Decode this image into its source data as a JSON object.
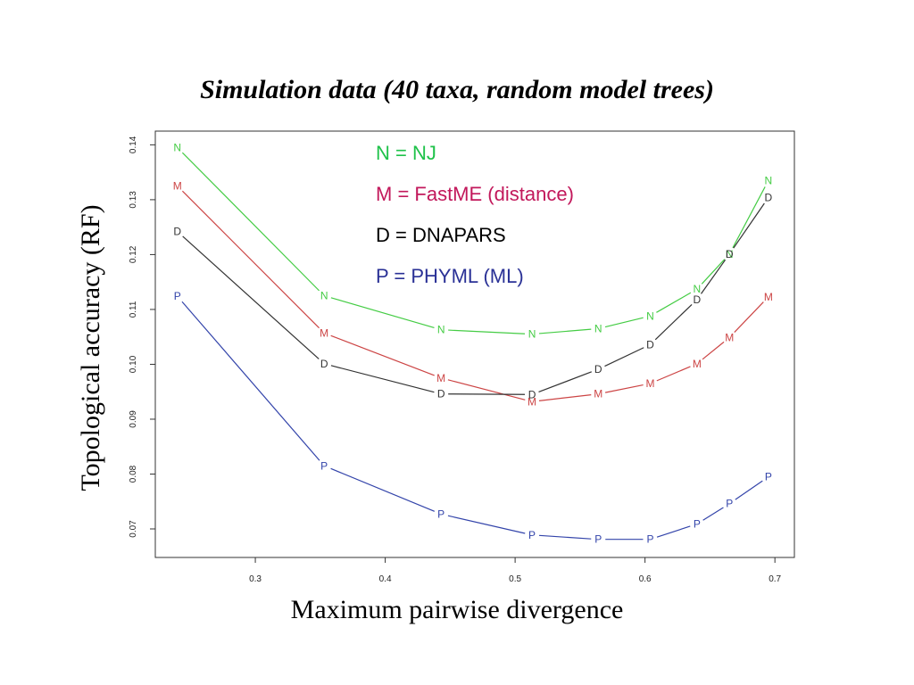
{
  "chart_data": {
    "type": "line",
    "title": "Simulation data (40 taxa, random model trees)",
    "xlabel": "Maximum pairwise divergence",
    "ylabel": "Topological accuracy (RF)",
    "xlim": [
      0.223,
      0.715
    ],
    "ylim": [
      0.0648,
      0.1425
    ],
    "xticks": [
      0.3,
      0.4,
      0.5,
      0.6,
      0.7
    ],
    "xtick_labels": [
      "0.3",
      "0.4",
      "0.5",
      "0.6",
      "0.7"
    ],
    "yticks": [
      0.07,
      0.08,
      0.09,
      0.1,
      0.11,
      0.12,
      0.13,
      0.14
    ],
    "ytick_labels": [
      "0.07",
      "0.08",
      "0.09",
      "0.10",
      "0.11",
      "0.12",
      "0.13",
      "0.14"
    ],
    "grid": false,
    "legend_position": "top-center",
    "legend": [
      {
        "text": "N = NJ",
        "color": "#1fc24a"
      },
      {
        "text": "M = FastME (distance)",
        "color": "#c2185b"
      },
      {
        "text": "D = DNAPARS",
        "color": "#000000"
      },
      {
        "text": "P = PHYML (ML)",
        "color": "#2a3196"
      }
    ],
    "series": [
      {
        "marker": "N",
        "color": "#44cc44",
        "x": [
          0.24,
          0.353,
          0.443,
          0.513,
          0.564,
          0.604,
          0.64,
          0.665,
          0.695
        ],
        "y": [
          0.1395,
          0.1125,
          0.1063,
          0.1055,
          0.1065,
          0.1088,
          0.1137,
          0.1201,
          0.1335
        ]
      },
      {
        "marker": "M",
        "color": "#cc4444",
        "x": [
          0.24,
          0.353,
          0.443,
          0.513,
          0.564,
          0.604,
          0.64,
          0.665,
          0.695
        ],
        "y": [
          0.1325,
          0.1057,
          0.0975,
          0.0932,
          0.0946,
          0.0965,
          0.1001,
          0.1049,
          0.1123
        ]
      },
      {
        "marker": "D",
        "color": "#333333",
        "x": [
          0.24,
          0.353,
          0.443,
          0.513,
          0.564,
          0.604,
          0.64,
          0.665,
          0.695
        ],
        "y": [
          0.1242,
          0.1001,
          0.0946,
          0.0945,
          0.0991,
          0.1036,
          0.1118,
          0.1201,
          0.1304
        ]
      },
      {
        "marker": "P",
        "color": "#3344aa",
        "x": [
          0.24,
          0.353,
          0.443,
          0.513,
          0.564,
          0.604,
          0.64,
          0.665,
          0.695
        ],
        "y": [
          0.1124,
          0.0815,
          0.0727,
          0.0689,
          0.0681,
          0.0681,
          0.0709,
          0.0746,
          0.0795
        ]
      }
    ]
  }
}
